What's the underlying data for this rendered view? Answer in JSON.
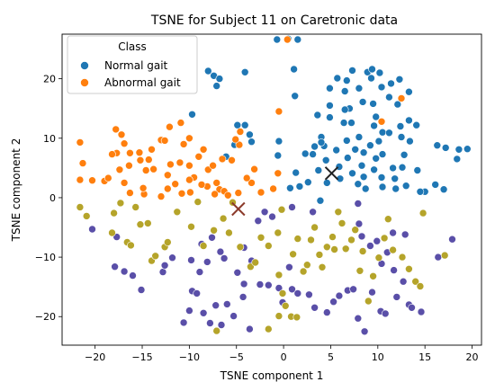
{
  "colors": {
    "normal": "#1f77b4",
    "abnormal": "#ff7f0e",
    "cluster_purple": "#5a4fa8",
    "cluster_olive": "#b5a42a",
    "centroid_normal": "#222222",
    "centroid_abnormal": "#8b3a2a"
  },
  "chart_data": {
    "type": "scatter",
    "title": "TSNE for Subject 11 on Caretronic data",
    "xlabel": "TSNE component 1",
    "ylabel": "TSNE component 2",
    "xlim": [
      -23.5,
      21.0
    ],
    "ylim": [
      -24.8,
      27.5
    ],
    "xticks": [
      -20,
      -15,
      -10,
      -5,
      0,
      5,
      10,
      15,
      20
    ],
    "yticks": [
      -20,
      -10,
      0,
      10,
      20
    ],
    "grid": false,
    "legend": {
      "title": "Class",
      "placement": "top-left",
      "entries": [
        "Normal gait",
        "Abnormal gait"
      ]
    },
    "series": [
      {
        "name": "Normal gait",
        "color": "#1f77b4",
        "points": [
          [
            -0.7,
            26.6
          ],
          [
            0.5,
            26.7
          ],
          [
            1.5,
            26.6
          ],
          [
            -4.1,
            21.1
          ],
          [
            1.1,
            21.6
          ],
          [
            -8.0,
            21.3
          ],
          [
            -7.4,
            20.5
          ],
          [
            -6.8,
            20.0
          ],
          [
            -7.1,
            18.8
          ],
          [
            1.2,
            17.1
          ],
          [
            4.9,
            18.4
          ],
          [
            5.7,
            20.1
          ],
          [
            6.7,
            19.7
          ],
          [
            7.3,
            21.4
          ],
          [
            8.0,
            18.4
          ],
          [
            8.9,
            21.1
          ],
          [
            9.4,
            21.6
          ],
          [
            9.3,
            20.1
          ],
          [
            10.2,
            21.0
          ],
          [
            10.4,
            18.6
          ],
          [
            11.4,
            19.2
          ],
          [
            12.3,
            19.9
          ],
          [
            13.3,
            17.8
          ],
          [
            11.2,
            16.9
          ],
          [
            6.5,
            17.9
          ],
          [
            4.9,
            15.5
          ],
          [
            7.0,
            15.0
          ],
          [
            8.4,
            16.1
          ],
          [
            9.5,
            15.8
          ],
          [
            12.1,
            15.7
          ],
          [
            3.6,
            13.9
          ],
          [
            4.9,
            13.5
          ],
          [
            6.4,
            12.6
          ],
          [
            7.2,
            12.6
          ],
          [
            9.6,
            12.1
          ],
          [
            10.5,
            11.0
          ],
          [
            12.4,
            12.0
          ],
          [
            13.3,
            13.0
          ],
          [
            14.1,
            12.2
          ],
          [
            11.2,
            10.9
          ],
          [
            8.0,
            10.2
          ],
          [
            7.6,
            8.1
          ],
          [
            5.6,
            8.0
          ],
          [
            4.0,
            10.2
          ],
          [
            3.3,
            8.6
          ],
          [
            2.3,
            7.4
          ],
          [
            3.1,
            7.3
          ],
          [
            4.3,
            8.7
          ],
          [
            6.7,
            9.6
          ],
          [
            9.2,
            8.8
          ],
          [
            10.1,
            9.5
          ],
          [
            12.5,
            10.2
          ],
          [
            13.4,
            9.5
          ],
          [
            12.8,
            7.2
          ],
          [
            10.5,
            7.3
          ],
          [
            9.8,
            6.6
          ],
          [
            8.5,
            7.6
          ],
          [
            6.8,
            6.7
          ],
          [
            5.9,
            5.2
          ],
          [
            4.5,
            6.3
          ],
          [
            3.7,
            4.6
          ],
          [
            2.6,
            2.6
          ],
          [
            1.3,
            4.2
          ],
          [
            1.7,
            1.9
          ],
          [
            0.7,
            1.6
          ],
          [
            -0.6,
            7.1
          ],
          [
            -0.5,
            9.5
          ],
          [
            -3.4,
            9.4
          ],
          [
            -4.1,
            12.2
          ],
          [
            -4.9,
            12.2
          ],
          [
            -3.6,
            10.6
          ],
          [
            -5.2,
            8.9
          ],
          [
            -9.7,
            14.0
          ],
          [
            -6.1,
            6.9
          ],
          [
            4.6,
            2.5
          ],
          [
            6.0,
            3.2
          ],
          [
            7.3,
            4.1
          ],
          [
            8.3,
            5.4
          ],
          [
            9.6,
            4.7
          ],
          [
            11.6,
            5.0
          ],
          [
            12.6,
            5.1
          ],
          [
            14.2,
            4.6
          ],
          [
            15.0,
            1.0
          ],
          [
            14.5,
            1.0
          ],
          [
            13.0,
            2.0
          ],
          [
            11.9,
            1.5
          ],
          [
            10.5,
            1.8
          ],
          [
            8.7,
            1.5
          ],
          [
            7.9,
            2.3
          ],
          [
            8.5,
            3.5
          ],
          [
            10.4,
            3.4
          ],
          [
            11.8,
            3.2
          ],
          [
            16.1,
            2.2
          ],
          [
            16.3,
            8.8
          ],
          [
            17.2,
            8.4
          ],
          [
            18.6,
            8.1
          ],
          [
            18.4,
            6.5
          ],
          [
            19.5,
            8.2
          ],
          [
            17.0,
            1.4
          ],
          [
            3.9,
            -0.5
          ],
          [
            4.0,
            9.3
          ],
          [
            6.5,
            14.8
          ],
          [
            9.8,
            13.6
          ]
        ]
      },
      {
        "name": "Abnormal gait",
        "color": "#ff7f0e",
        "points": [
          [
            -21.6,
            9.3
          ],
          [
            -21.3,
            5.8
          ],
          [
            -21.6,
            3.0
          ],
          [
            -19.0,
            2.8
          ],
          [
            -18.6,
            3.3
          ],
          [
            -17.8,
            11.5
          ],
          [
            -17.2,
            10.6
          ],
          [
            -16.9,
            9.1
          ],
          [
            -17.7,
            7.5
          ],
          [
            -18.2,
            7.3
          ],
          [
            -16.3,
            7.5
          ],
          [
            -15.3,
            7.6
          ],
          [
            -16.4,
            5.4
          ],
          [
            -17.4,
            4.7
          ],
          [
            -16.9,
            2.5
          ],
          [
            -16.3,
            0.8
          ],
          [
            -14.8,
            0.6
          ],
          [
            -14.9,
            1.6
          ],
          [
            -14.6,
            4.6
          ],
          [
            -15.2,
            6.3
          ],
          [
            -14.3,
            6.4
          ],
          [
            -14.0,
            8.1
          ],
          [
            -13.0,
            9.7
          ],
          [
            -12.6,
            9.6
          ],
          [
            -12.1,
            11.9
          ],
          [
            -10.9,
            12.6
          ],
          [
            -10.0,
            10.0
          ],
          [
            -10.6,
            9.0
          ],
          [
            -11.0,
            5.9
          ],
          [
            -12.0,
            5.6
          ],
          [
            -12.3,
            3.8
          ],
          [
            -11.5,
            2.3
          ],
          [
            -10.8,
            0.7
          ],
          [
            -12.3,
            1.5
          ],
          [
            -13.0,
            0.2
          ],
          [
            -9.9,
            0.9
          ],
          [
            -9.5,
            3.4
          ],
          [
            -10.0,
            5.4
          ],
          [
            -9.0,
            6.9
          ],
          [
            -8.5,
            8.1
          ],
          [
            -8.0,
            4.7
          ],
          [
            -7.5,
            5.4
          ],
          [
            -7.1,
            2.5
          ],
          [
            -8.1,
            1.9
          ],
          [
            -8.7,
            2.2
          ],
          [
            -6.8,
            1.4
          ],
          [
            -6.3,
            1.1
          ],
          [
            -5.9,
            0.4
          ],
          [
            -4.8,
            0.8
          ],
          [
            -6.5,
            6.5
          ],
          [
            -5.5,
            6.3
          ],
          [
            -4.6,
            11.1
          ],
          [
            -4.7,
            8.9
          ],
          [
            -5.1,
            9.8
          ],
          [
            -3.1,
            4.8
          ],
          [
            -3.4,
            2.5
          ],
          [
            -2.4,
            0.9
          ],
          [
            -1.1,
            1.5
          ],
          [
            -0.6,
            4.1
          ],
          [
            -0.5,
            14.5
          ],
          [
            0.4,
            26.6
          ],
          [
            10.4,
            12.8
          ],
          [
            12.5,
            16.7
          ],
          [
            -10.0,
            3.0
          ],
          [
            -13.8,
            4.8
          ],
          [
            -20.3,
            2.9
          ],
          [
            -3.9,
            3.3
          ],
          [
            -7.3,
            0.6
          ]
        ]
      },
      {
        "color": "#5a4fa8",
        "points": [
          [
            -17.9,
            -11.6
          ],
          [
            -16.9,
            -12.4
          ],
          [
            -16.0,
            -13.1
          ],
          [
            -15.1,
            -15.5
          ],
          [
            -12.8,
            -12.5
          ],
          [
            -11.8,
            -10.1
          ],
          [
            -10.6,
            -21.0
          ],
          [
            -10.0,
            -19.0
          ],
          [
            -9.7,
            -15.7
          ],
          [
            -9.2,
            -16.1
          ],
          [
            -8.9,
            -12.5
          ],
          [
            -8.5,
            -19.4
          ],
          [
            -8.1,
            -10.8
          ],
          [
            -7.8,
            -21.1
          ],
          [
            -7.2,
            -18.1
          ],
          [
            -6.6,
            -21.4
          ],
          [
            -6.0,
            -17.9
          ],
          [
            -5.3,
            -19.9
          ],
          [
            -4.9,
            -12.6
          ],
          [
            -4.3,
            -16.7
          ],
          [
            -4.2,
            -14.5
          ],
          [
            -3.6,
            -22.1
          ],
          [
            -3.4,
            -10.6
          ],
          [
            -2.5,
            -14.6
          ],
          [
            -1.6,
            -14.7
          ],
          [
            -0.5,
            -15.2
          ],
          [
            -0.1,
            -17.6
          ],
          [
            0.6,
            -11.7
          ],
          [
            0.9,
            -15.4
          ],
          [
            1.5,
            -16.1
          ],
          [
            2.7,
            -16.3
          ],
          [
            3.3,
            -18.5
          ],
          [
            4.6,
            -19.3
          ],
          [
            5.3,
            -17.5
          ],
          [
            5.9,
            -16.5
          ],
          [
            6.8,
            -15.6
          ],
          [
            7.4,
            -15.4
          ],
          [
            7.9,
            -20.3
          ],
          [
            8.6,
            -22.5
          ],
          [
            9.4,
            -15.9
          ],
          [
            10.3,
            -19.1
          ],
          [
            10.8,
            -19.5
          ],
          [
            11.7,
            -12.2
          ],
          [
            12.7,
            -14.1
          ],
          [
            12.0,
            -16.7
          ],
          [
            13.3,
            -18.0
          ],
          [
            13.6,
            -18.5
          ],
          [
            14.6,
            -19.2
          ],
          [
            -8.7,
            -7.8
          ],
          [
            -7.6,
            -6.7
          ],
          [
            -6.7,
            -9.1
          ],
          [
            -6.3,
            -10.2
          ],
          [
            -9.8,
            -10.5
          ],
          [
            -12.6,
            -11.4
          ],
          [
            -4.2,
            -8.4
          ],
          [
            -2.7,
            -3.9
          ],
          [
            -2.0,
            -2.4
          ],
          [
            -1.2,
            -3.2
          ],
          [
            0.9,
            -1.6
          ],
          [
            3.1,
            -2.4
          ],
          [
            7.9,
            -1.0
          ],
          [
            8.0,
            -4.4
          ],
          [
            8.3,
            -6.5
          ],
          [
            9.2,
            -8.1
          ],
          [
            9.9,
            -7.3
          ],
          [
            10.4,
            -11.1
          ],
          [
            11.0,
            -9.2
          ],
          [
            11.6,
            -5.9
          ],
          [
            12.9,
            -6.2
          ],
          [
            17.9,
            -7.0
          ],
          [
            16.4,
            -10.0
          ],
          [
            -20.3,
            -5.3
          ],
          [
            -17.7,
            -6.6
          ]
        ]
      },
      {
        "color": "#b5a42a",
        "points": [
          [
            -21.6,
            -1.6
          ],
          [
            -20.9,
            -3.1
          ],
          [
            -18.2,
            -5.9
          ],
          [
            -18.0,
            -2.6
          ],
          [
            -17.3,
            -0.9
          ],
          [
            -16.6,
            -7.5
          ],
          [
            -16.2,
            -8.0
          ],
          [
            -15.7,
            -1.6
          ],
          [
            -15.2,
            -4.5
          ],
          [
            -14.4,
            -4.3
          ],
          [
            -14.0,
            -10.6
          ],
          [
            -13.6,
            -9.8
          ],
          [
            -12.6,
            -8.3
          ],
          [
            -12.3,
            -7.5
          ],
          [
            -11.3,
            -2.4
          ],
          [
            -9.8,
            -4.9
          ],
          [
            -9.1,
            -0.7
          ],
          [
            -8.5,
            -8.1
          ],
          [
            -7.4,
            -5.5
          ],
          [
            -6.4,
            -3.5
          ],
          [
            -5.4,
            -0.8
          ],
          [
            -4.6,
            -8.3
          ],
          [
            -3.5,
            -11.6
          ],
          [
            -3.0,
            -10.9
          ],
          [
            -2.4,
            -6.7
          ],
          [
            -1.6,
            -8.1
          ],
          [
            -0.6,
            -5.9
          ],
          [
            -0.5,
            -13.0
          ],
          [
            -0.1,
            -16.1
          ],
          [
            0.2,
            -18.2
          ],
          [
            0.8,
            -20.0
          ],
          [
            1.0,
            -9.5
          ],
          [
            1.5,
            -6.9
          ],
          [
            2.1,
            -12.4
          ],
          [
            2.5,
            -11.3
          ],
          [
            2.9,
            -7.1
          ],
          [
            3.3,
            -5.0
          ],
          [
            3.8,
            -9.6
          ],
          [
            4.1,
            -11.7
          ],
          [
            4.6,
            -8.3
          ],
          [
            5.2,
            -6.6
          ],
          [
            5.4,
            -8.7
          ],
          [
            5.8,
            -2.4
          ],
          [
            6.2,
            -4.3
          ],
          [
            6.6,
            -8.6
          ],
          [
            7.2,
            -7.1
          ],
          [
            7.6,
            -5.4
          ],
          [
            8.1,
            -12.3
          ],
          [
            8.4,
            -9.0
          ],
          [
            9.0,
            -17.4
          ],
          [
            9.5,
            -13.2
          ],
          [
            10.1,
            -10.1
          ],
          [
            10.7,
            -6.8
          ],
          [
            11.1,
            -3.6
          ],
          [
            11.6,
            -8.8
          ],
          [
            12.6,
            -10.0
          ],
          [
            13.3,
            -12.0
          ],
          [
            14.0,
            -14.1
          ],
          [
            14.5,
            -14.9
          ],
          [
            14.8,
            -2.6
          ],
          [
            17.1,
            -9.7
          ],
          [
            -7.1,
            -22.4
          ],
          [
            -1.6,
            -22.1
          ],
          [
            -0.5,
            -19.9
          ],
          [
            1.4,
            -20.1
          ],
          [
            -5.8,
            -5.9
          ],
          [
            -0.2,
            -2.0
          ]
        ]
      }
    ],
    "centroids": [
      {
        "x": 5.1,
        "y": 4.1,
        "color": "#222222"
      },
      {
        "x": -4.8,
        "y": -1.9,
        "color": "#8b3a2a"
      }
    ]
  }
}
